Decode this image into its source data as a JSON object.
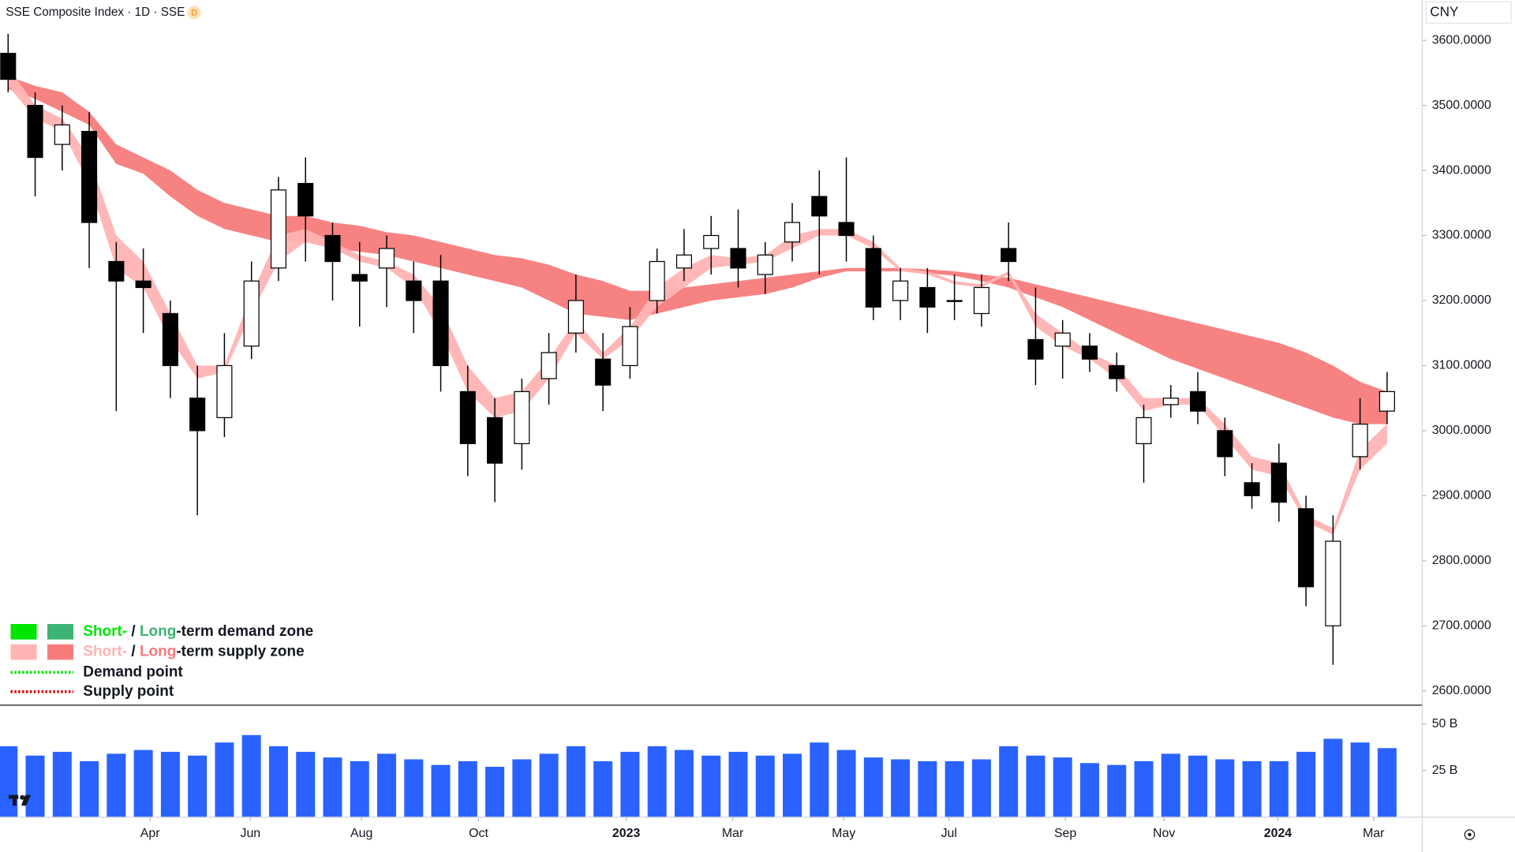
{
  "chart_data": {
    "type": "candlestick",
    "title": "SSE Composite Index · 1D · SSE",
    "interval_badge": "D",
    "currency": "CNY",
    "x": [
      0,
      1,
      2,
      3,
      4,
      5,
      6,
      7,
      8,
      9,
      10,
      11,
      12,
      13,
      14,
      15,
      16,
      17,
      18,
      19,
      20,
      21,
      22,
      23,
      24,
      25,
      26,
      27,
      28,
      29,
      30,
      31,
      32,
      33,
      34,
      35,
      36,
      37,
      38,
      39,
      40,
      41,
      42,
      43,
      44,
      45,
      46,
      47,
      48,
      49,
      50,
      51
    ],
    "xlim": [
      -0.3,
      52.3
    ],
    "xticks": [
      {
        "value": 5.25,
        "label": "Apr"
      },
      {
        "value": 8.96,
        "label": "Jun"
      },
      {
        "value": 13.07,
        "label": "Aug"
      },
      {
        "value": 17.4,
        "label": "Oct"
      },
      {
        "value": 22.86,
        "label": "2023"
      },
      {
        "value": 26.8,
        "label": "Mar"
      },
      {
        "value": 30.9,
        "label": "May"
      },
      {
        "value": 34.8,
        "label": "Jul"
      },
      {
        "value": 39.1,
        "label": "Sep"
      },
      {
        "value": 42.75,
        "label": "Nov"
      },
      {
        "value": 46.96,
        "label": "2024"
      },
      {
        "value": 50.5,
        "label": "Mar"
      }
    ],
    "open": [
      3580,
      3500,
      3440,
      3460,
      3260,
      3230,
      3180,
      3050,
      3020,
      3130,
      3250,
      3380,
      3300,
      3240,
      3250,
      3230,
      3230,
      3060,
      3020,
      2980,
      3080,
      3150,
      3110,
      3100,
      3200,
      3250,
      3280,
      3280,
      3240,
      3290,
      3360,
      3320,
      3280,
      3200,
      3220,
      3200,
      3180,
      3280,
      3140,
      3130,
      3130,
      3100,
      2980,
      3040,
      3060,
      3000,
      2920,
      2950,
      2880,
      2700,
      2960,
      3030
    ],
    "high": [
      3610,
      3520,
      3500,
      3490,
      3290,
      3280,
      3200,
      3100,
      3150,
      3260,
      3390,
      3420,
      3320,
      3290,
      3300,
      3260,
      3270,
      3100,
      3050,
      3080,
      3150,
      3240,
      3150,
      3190,
      3280,
      3310,
      3330,
      3340,
      3290,
      3350,
      3400,
      3420,
      3300,
      3250,
      3250,
      3240,
      3240,
      3320,
      3220,
      3170,
      3150,
      3120,
      3040,
      3070,
      3090,
      3020,
      2950,
      2980,
      2900,
      2870,
      3050,
      3090
    ],
    "low": [
      3520,
      3360,
      3400,
      3250,
      3030,
      3150,
      3050,
      2870,
      2990,
      3110,
      3230,
      3260,
      3200,
      3160,
      3190,
      3150,
      3060,
      2930,
      2890,
      2940,
      3040,
      3120,
      3030,
      3080,
      3180,
      3230,
      3240,
      3220,
      3210,
      3260,
      3240,
      3260,
      3170,
      3170,
      3150,
      3170,
      3160,
      3230,
      3070,
      3080,
      3090,
      3060,
      2920,
      3020,
      3010,
      2930,
      2880,
      2860,
      2730,
      2640,
      2940,
      3010
    ],
    "close": [
      3540,
      3420,
      3470,
      3320,
      3230,
      3220,
      3100,
      3000,
      3100,
      3230,
      3370,
      3330,
      3260,
      3230,
      3280,
      3200,
      3100,
      2980,
      2950,
      3060,
      3120,
      3200,
      3070,
      3160,
      3260,
      3270,
      3300,
      3250,
      3270,
      3320,
      3330,
      3300,
      3190,
      3230,
      3190,
      3200,
      3220,
      3260,
      3110,
      3150,
      3110,
      3080,
      3020,
      3050,
      3030,
      2960,
      2900,
      2890,
      2760,
      2830,
      3010,
      3060
    ],
    "candle_colors": {
      "up": "#ffffff",
      "down": "#000000",
      "outline": "#000000"
    },
    "ylim": [
      2578,
      3662
    ],
    "yticks": [
      {
        "value": 3600,
        "label": "3600.0000"
      },
      {
        "value": 3500,
        "label": "3500.0000"
      },
      {
        "value": 3400,
        "label": "3400.0000"
      },
      {
        "value": 3300,
        "label": "3300.0000"
      },
      {
        "value": 3200,
        "label": "3200.0000"
      },
      {
        "value": 3100,
        "label": "3100.0000"
      },
      {
        "value": 3000,
        "label": "3000.0000"
      },
      {
        "value": 2900,
        "label": "2900.0000"
      },
      {
        "value": 2800,
        "label": "2800.0000"
      },
      {
        "value": 2700,
        "label": "2700.0000"
      },
      {
        "value": 2600,
        "label": "2600.0000"
      }
    ],
    "bands": [
      {
        "color": "#f77b7b",
        "upper": [
          3545,
          3530,
          3520,
          3490,
          3440,
          3420,
          3400,
          3370,
          3350,
          3340,
          3330,
          3330,
          3320,
          3315,
          3305,
          3300,
          3290,
          3280,
          3270,
          3265,
          3255,
          3240,
          3230,
          3215,
          3215,
          3220,
          3225,
          3230,
          3235,
          3240,
          3245,
          3250,
          3250,
          3250,
          3248,
          3245,
          3240,
          3235,
          3225,
          3215,
          3205,
          3195,
          3185,
          3175,
          3165,
          3155,
          3145,
          3135,
          3120,
          3100,
          3075,
          3060
        ],
        "lower": [
          3525,
          3510,
          3490,
          3470,
          3410,
          3395,
          3360,
          3330,
          3310,
          3300,
          3290,
          3290,
          3280,
          3275,
          3270,
          3260,
          3250,
          3240,
          3230,
          3220,
          3200,
          3180,
          3175,
          3170,
          3180,
          3190,
          3200,
          3205,
          3210,
          3220,
          3235,
          3245,
          3245,
          3245,
          3242,
          3238,
          3230,
          3220,
          3205,
          3190,
          3170,
          3150,
          3130,
          3110,
          3095,
          3080,
          3065,
          3050,
          3035,
          3020,
          3010,
          3010
        ]
      },
      {
        "color": "#ffb3b3",
        "upper": [
          3560,
          3500,
          3480,
          3420,
          3300,
          3260,
          3180,
          3100,
          3100,
          3210,
          3300,
          3310,
          3290,
          3270,
          3260,
          3240,
          3190,
          3100,
          3050,
          3060,
          3110,
          3170,
          3120,
          3160,
          3220,
          3250,
          3270,
          3265,
          3270,
          3300,
          3310,
          3310,
          3290,
          3250,
          3245,
          3230,
          3225,
          3245,
          3180,
          3150,
          3120,
          3100,
          3050,
          3050,
          3050,
          3010,
          2960,
          2950,
          2870,
          2850,
          2970,
          3010
        ],
        "lower": [
          3530,
          3480,
          3460,
          3380,
          3250,
          3220,
          3140,
          3080,
          3090,
          3180,
          3260,
          3290,
          3280,
          3260,
          3250,
          3220,
          3150,
          3060,
          3020,
          3030,
          3080,
          3150,
          3110,
          3140,
          3190,
          3220,
          3250,
          3255,
          3260,
          3280,
          3300,
          3300,
          3280,
          3245,
          3240,
          3225,
          3220,
          3240,
          3160,
          3130,
          3110,
          3080,
          3030,
          3040,
          3040,
          2990,
          2940,
          2930,
          2860,
          2840,
          2940,
          2980
        ]
      }
    ],
    "legend": [
      {
        "short": "Short-",
        "sep": " / ",
        "long": "Long",
        "rest": "-term demand zone",
        "short_color": "#00e600",
        "long_color": "#3cb371"
      },
      {
        "short": "Short-",
        "sep": " / ",
        "long": "Long",
        "rest": "-term supply zone",
        "short_color": "#ffb3b3",
        "long_color": "#f77b7b"
      }
    ],
    "points": [
      {
        "label": "Demand point",
        "color": "#00e600"
      },
      {
        "label": "Supply point",
        "color": "#e00000"
      }
    ],
    "volume": {
      "color": "#2962ff",
      "ylim": [
        0,
        60
      ],
      "yticks": [
        {
          "value": 50,
          "label": "50 B"
        },
        {
          "value": 25,
          "label": "25 B"
        }
      ],
      "values": [
        38,
        33,
        35,
        30,
        34,
        36,
        35,
        33,
        40,
        44,
        38,
        35,
        32,
        30,
        34,
        31,
        28,
        30,
        27,
        31,
        34,
        38,
        30,
        35,
        38,
        36,
        33,
        35,
        33,
        34,
        40,
        36,
        32,
        31,
        30,
        30,
        31,
        38,
        33,
        32,
        29,
        28,
        30,
        34,
        33,
        31,
        30,
        30,
        35,
        42,
        40,
        37
      ]
    }
  }
}
